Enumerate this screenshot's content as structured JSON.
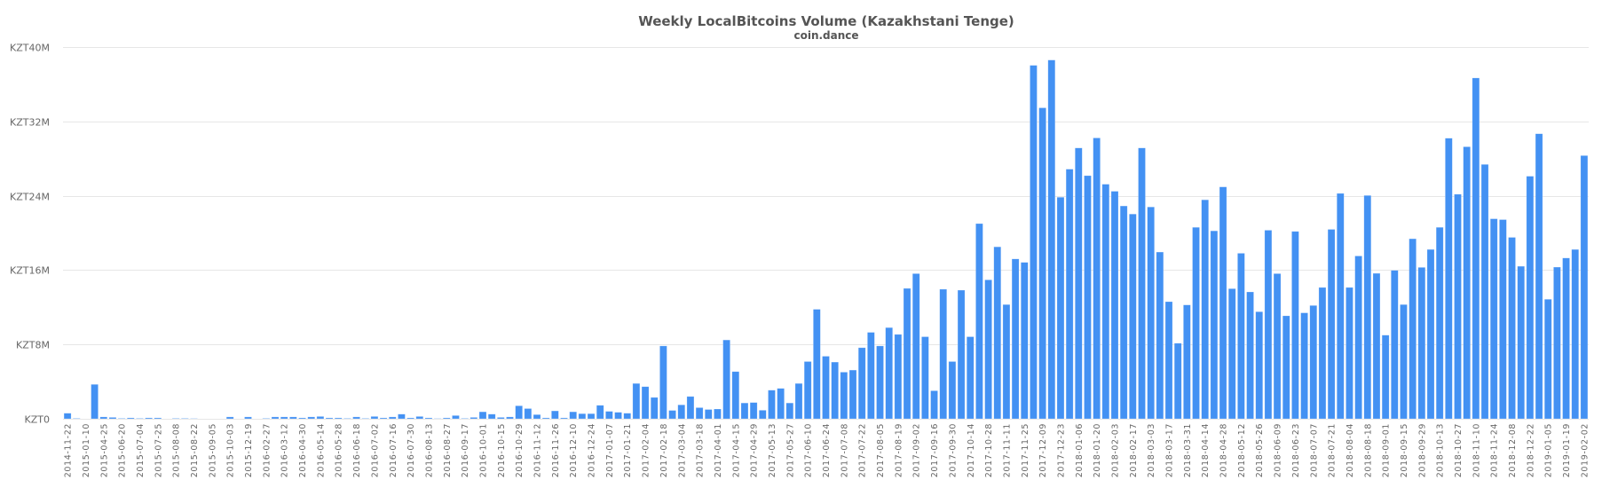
{
  "chart_data": {
    "type": "bar",
    "title": "Weekly LocalBitcoins Volume (Kazakhstani Tenge)",
    "subtitle": "coin.dance",
    "xlabel": "",
    "ylabel": "",
    "ylim": [
      0,
      40000000
    ],
    "y_ticks": [
      {
        "value": 0,
        "label": "KZT0"
      },
      {
        "value": 8000000,
        "label": "KZT8M"
      },
      {
        "value": 16000000,
        "label": "KZT16M"
      },
      {
        "value": 24000000,
        "label": "KZT24M"
      },
      {
        "value": 32000000,
        "label": "KZT32M"
      },
      {
        "value": 40000000,
        "label": "KZT40M"
      }
    ],
    "grid": true,
    "legend": "none",
    "bar_color": "#4391f3",
    "tick_label_every": 2,
    "categories": [
      "2014-11-22",
      "2014-11-29",
      "2015-01-10",
      "2015-01-17",
      "2015-04-25",
      "2015-05-02",
      "2015-06-20",
      "2015-06-27",
      "2015-07-04",
      "2015-07-11",
      "2015-07-25",
      "2015-08-01",
      "2015-08-08",
      "2015-08-15",
      "2015-08-22",
      "2015-08-29",
      "2015-09-05",
      "2015-09-12",
      "2015-10-03",
      "2015-10-10",
      "2015-12-19",
      "2015-12-26",
      "2016-02-27",
      "2016-03-05",
      "2016-03-12",
      "2016-03-19",
      "2016-04-30",
      "2016-05-07",
      "2016-05-14",
      "2016-05-21",
      "2016-05-28",
      "2016-06-04",
      "2016-06-18",
      "2016-06-25",
      "2016-07-02",
      "2016-07-09",
      "2016-07-16",
      "2016-07-23",
      "2016-07-30",
      "2016-08-06",
      "2016-08-13",
      "2016-08-20",
      "2016-08-27",
      "2016-09-03",
      "2016-09-17",
      "2016-09-24",
      "2016-10-01",
      "2016-10-08",
      "2016-10-15",
      "2016-10-22",
      "2016-10-29",
      "2016-11-05",
      "2016-11-12",
      "2016-11-19",
      "2016-11-26",
      "2016-12-03",
      "2016-12-10",
      "2016-12-17",
      "2016-12-24",
      "2016-12-31",
      "2017-01-07",
      "2017-01-14",
      "2017-01-21",
      "2017-01-28",
      "2017-02-04",
      "2017-02-11",
      "2017-02-18",
      "2017-02-25",
      "2017-03-04",
      "2017-03-11",
      "2017-03-18",
      "2017-03-25",
      "2017-04-01",
      "2017-04-08",
      "2017-04-15",
      "2017-04-22",
      "2017-04-29",
      "2017-05-06",
      "2017-05-13",
      "2017-05-20",
      "2017-05-27",
      "2017-06-03",
      "2017-06-10",
      "2017-06-17",
      "2017-06-24",
      "2017-07-01",
      "2017-07-08",
      "2017-07-15",
      "2017-07-22",
      "2017-07-29",
      "2017-08-05",
      "2017-08-12",
      "2017-08-19",
      "2017-08-26",
      "2017-09-02",
      "2017-09-09",
      "2017-09-16",
      "2017-09-23",
      "2017-09-30",
      "2017-10-07",
      "2017-10-14",
      "2017-10-21",
      "2017-10-28",
      "2017-11-04",
      "2017-11-11",
      "2017-11-18",
      "2017-11-25",
      "2017-12-02",
      "2017-12-09",
      "2017-12-16",
      "2017-12-23",
      "2017-12-30",
      "2018-01-06",
      "2018-01-13",
      "2018-01-20",
      "2018-01-27",
      "2018-02-03",
      "2018-02-10",
      "2018-02-17",
      "2018-02-24",
      "2018-03-03",
      "2018-03-10",
      "2018-03-17",
      "2018-03-24",
      "2018-03-31",
      "2018-04-07",
      "2018-04-14",
      "2018-04-21",
      "2018-04-28",
      "2018-05-05",
      "2018-05-12",
      "2018-05-19",
      "2018-05-26",
      "2018-06-02",
      "2018-06-09",
      "2018-06-16",
      "2018-06-23",
      "2018-06-30",
      "2018-07-07",
      "2018-07-14",
      "2018-07-21",
      "2018-07-28",
      "2018-08-04",
      "2018-08-11",
      "2018-08-18",
      "2018-08-25",
      "2018-09-01",
      "2018-09-08",
      "2018-09-15",
      "2018-09-22",
      "2018-09-29",
      "2018-10-06",
      "2018-10-13",
      "2018-10-20",
      "2018-10-27",
      "2018-11-03",
      "2018-11-10",
      "2018-11-17",
      "2018-11-24",
      "2018-12-01",
      "2018-12-08",
      "2018-12-15",
      "2018-12-22",
      "2018-12-29",
      "2019-01-05",
      "2019-01-12",
      "2019-01-19",
      "2019-01-26",
      "2019-02-02"
    ],
    "values": [
      600000,
      50000,
      0,
      3700000,
      200000,
      150000,
      50000,
      100000,
      50000,
      100000,
      100000,
      0,
      50000,
      50000,
      30000,
      0,
      0,
      0,
      200000,
      0,
      200000,
      0,
      50000,
      200000,
      200000,
      200000,
      100000,
      200000,
      250000,
      100000,
      100000,
      50000,
      200000,
      50000,
      250000,
      100000,
      200000,
      500000,
      100000,
      250000,
      100000,
      30000,
      100000,
      350000,
      50000,
      150000,
      750000,
      500000,
      150000,
      200000,
      1400000,
      1100000,
      450000,
      100000,
      850000,
      100000,
      750000,
      550000,
      550000,
      1450000,
      800000,
      700000,
      600000,
      3800000,
      3460000,
      2300000,
      7840000,
      900000,
      1500000,
      2400000,
      1200000,
      1000000,
      1050000,
      8480000,
      5080000,
      1700000,
      1750000,
      920000,
      3080000,
      3270000,
      1700000,
      3800000,
      6160000,
      11780000,
      6730000,
      6100000,
      5020000,
      5240000,
      7650000,
      9300000,
      7840000,
      9810000,
      9080000,
      14030000,
      15620000,
      8830000,
      3020000,
      13940000,
      6160000,
      13840000,
      8830000,
      21000000,
      14950000,
      18500000,
      12290000,
      17200000,
      16830000,
      38030000,
      33460000,
      38600000,
      23840000,
      26860000,
      29140000,
      26160000,
      30220000,
      25240000,
      24480000,
      22900000,
      22030000,
      29140000,
      22790000,
      17940000,
      12600000,
      8130000,
      12250000,
      20600000,
      23560000,
      20220000,
      24950000,
      14000000,
      17810000,
      13650000,
      11520000,
      20290000,
      15620000,
      11080000,
      20160000,
      11400000,
      12190000,
      14130000,
      20380000,
      24250000,
      14130000,
      17520000,
      24030000,
      15650000,
      9000000,
      15970000,
      12290000,
      19370000,
      16290000,
      18220000,
      20600000,
      30190000,
      24160000,
      29270000,
      36670000,
      27370000,
      21520000,
      21430000,
      19520000,
      16410000,
      26100000,
      30670000,
      12860000,
      16320000,
      17300000,
      18220000,
      28320000
    ]
  }
}
